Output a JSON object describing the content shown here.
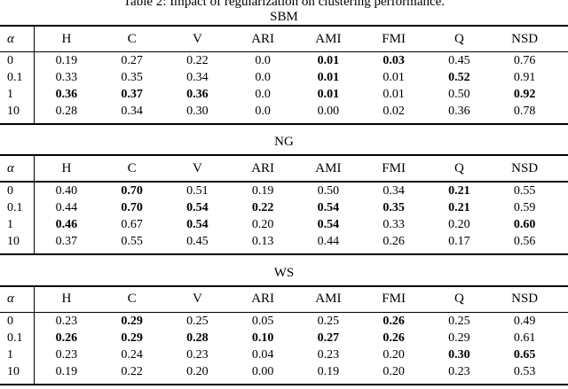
{
  "title": "Table 2: Impact of regularization on clustering performance.",
  "alpha_symbol": "α",
  "columns": [
    "H",
    "C",
    "V",
    "ARI",
    "AMI",
    "FMI",
    "Q",
    "NSD"
  ],
  "tables": [
    {
      "label": "SBM",
      "rows": [
        {
          "alpha": "0",
          "cells": [
            {
              "v": "0.19",
              "b": false
            },
            {
              "v": "0.27",
              "b": false
            },
            {
              "v": "0.22",
              "b": false
            },
            {
              "v": "0.0",
              "b": false
            },
            {
              "v": "0.01",
              "b": true
            },
            {
              "v": "0.03",
              "b": true
            },
            {
              "v": "0.45",
              "b": false
            },
            {
              "v": "0.76",
              "b": false
            }
          ]
        },
        {
          "alpha": "0.1",
          "cells": [
            {
              "v": "0.33",
              "b": false
            },
            {
              "v": "0.35",
              "b": false
            },
            {
              "v": "0.34",
              "b": false
            },
            {
              "v": "0.0",
              "b": false
            },
            {
              "v": "0.01",
              "b": true
            },
            {
              "v": "0.01",
              "b": false
            },
            {
              "v": "0.52",
              "b": true
            },
            {
              "v": "0.91",
              "b": false
            }
          ]
        },
        {
          "alpha": "1",
          "cells": [
            {
              "v": "0.36",
              "b": true
            },
            {
              "v": "0.37",
              "b": true
            },
            {
              "v": "0.36",
              "b": true
            },
            {
              "v": "0.0",
              "b": false
            },
            {
              "v": "0.01",
              "b": true
            },
            {
              "v": "0.01",
              "b": false
            },
            {
              "v": "0.50",
              "b": false
            },
            {
              "v": "0.92",
              "b": true
            }
          ]
        },
        {
          "alpha": "10",
          "cells": [
            {
              "v": "0.28",
              "b": false
            },
            {
              "v": "0.34",
              "b": false
            },
            {
              "v": "0.30",
              "b": false
            },
            {
              "v": "0.0",
              "b": false
            },
            {
              "v": "0.00",
              "b": false
            },
            {
              "v": "0.02",
              "b": false
            },
            {
              "v": "0.36",
              "b": false
            },
            {
              "v": "0.78",
              "b": false
            }
          ]
        }
      ]
    },
    {
      "label": "NG",
      "rows": [
        {
          "alpha": "0",
          "cells": [
            {
              "v": "0.40",
              "b": false
            },
            {
              "v": "0.70",
              "b": true
            },
            {
              "v": "0.51",
              "b": false
            },
            {
              "v": "0.19",
              "b": false
            },
            {
              "v": "0.50",
              "b": false
            },
            {
              "v": "0.34",
              "b": false
            },
            {
              "v": "0.21",
              "b": true
            },
            {
              "v": "0.55",
              "b": false
            }
          ]
        },
        {
          "alpha": "0.1",
          "cells": [
            {
              "v": "0.44",
              "b": false
            },
            {
              "v": "0.70",
              "b": true
            },
            {
              "v": "0.54",
              "b": true
            },
            {
              "v": "0.22",
              "b": true
            },
            {
              "v": "0.54",
              "b": true
            },
            {
              "v": "0.35",
              "b": true
            },
            {
              "v": "0.21",
              "b": true
            },
            {
              "v": "0.59",
              "b": false
            }
          ]
        },
        {
          "alpha": "1",
          "cells": [
            {
              "v": "0.46",
              "b": true
            },
            {
              "v": "0.67",
              "b": false
            },
            {
              "v": "0.54",
              "b": true
            },
            {
              "v": "0.20",
              "b": false
            },
            {
              "v": "0.54",
              "b": true
            },
            {
              "v": "0.33",
              "b": false
            },
            {
              "v": "0.20",
              "b": false
            },
            {
              "v": "0.60",
              "b": true
            }
          ]
        },
        {
          "alpha": "10",
          "cells": [
            {
              "v": "0.37",
              "b": false
            },
            {
              "v": "0.55",
              "b": false
            },
            {
              "v": "0.45",
              "b": false
            },
            {
              "v": "0.13",
              "b": false
            },
            {
              "v": "0.44",
              "b": false
            },
            {
              "v": "0.26",
              "b": false
            },
            {
              "v": "0.17",
              "b": false
            },
            {
              "v": "0.56",
              "b": false
            }
          ]
        }
      ]
    },
    {
      "label": "WS",
      "rows": [
        {
          "alpha": "0",
          "cells": [
            {
              "v": "0.23",
              "b": false
            },
            {
              "v": "0.29",
              "b": true
            },
            {
              "v": "0.25",
              "b": false
            },
            {
              "v": "0.05",
              "b": false
            },
            {
              "v": "0.25",
              "b": false
            },
            {
              "v": "0.26",
              "b": true
            },
            {
              "v": "0.25",
              "b": false
            },
            {
              "v": "0.49",
              "b": false
            }
          ]
        },
        {
          "alpha": "0.1",
          "cells": [
            {
              "v": "0.26",
              "b": true
            },
            {
              "v": "0.29",
              "b": true
            },
            {
              "v": "0.28",
              "b": true
            },
            {
              "v": "0.10",
              "b": true
            },
            {
              "v": "0.27",
              "b": true
            },
            {
              "v": "0.26",
              "b": true
            },
            {
              "v": "0.29",
              "b": false
            },
            {
              "v": "0.61",
              "b": false
            }
          ]
        },
        {
          "alpha": "1",
          "cells": [
            {
              "v": "0.23",
              "b": false
            },
            {
              "v": "0.24",
              "b": false
            },
            {
              "v": "0.23",
              "b": false
            },
            {
              "v": "0.04",
              "b": false
            },
            {
              "v": "0.23",
              "b": false
            },
            {
              "v": "0.20",
              "b": false
            },
            {
              "v": "0.30",
              "b": true
            },
            {
              "v": "0.65",
              "b": true
            }
          ]
        },
        {
          "alpha": "10",
          "cells": [
            {
              "v": "0.19",
              "b": false
            },
            {
              "v": "0.22",
              "b": false
            },
            {
              "v": "0.20",
              "b": false
            },
            {
              "v": "0.00",
              "b": false
            },
            {
              "v": "0.19",
              "b": false
            },
            {
              "v": "0.20",
              "b": false
            },
            {
              "v": "0.23",
              "b": false
            },
            {
              "v": "0.53",
              "b": false
            }
          ]
        }
      ]
    }
  ]
}
